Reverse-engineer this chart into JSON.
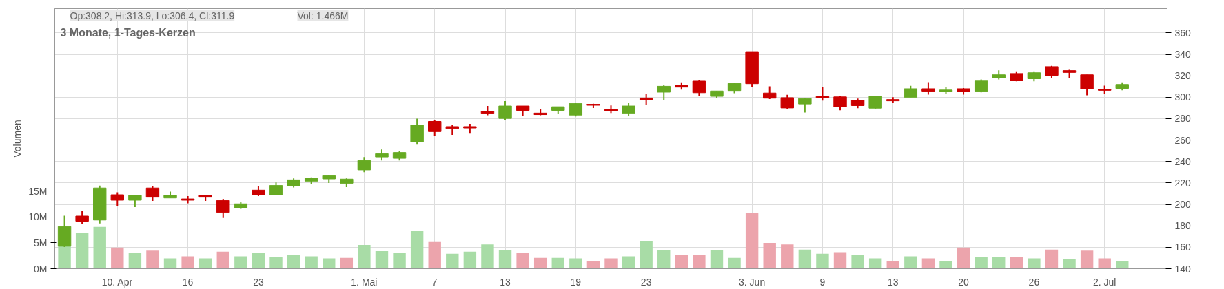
{
  "chart_data": {
    "type": "candlestick",
    "title": "3 Monate, 1-Tages-Kerzen",
    "categories": [
      null,
      null,
      null,
      "10. Apr",
      null,
      null,
      null,
      "16",
      null,
      null,
      null,
      "23",
      null,
      null,
      null,
      null,
      null,
      "1. Mai",
      null,
      null,
      null,
      "7",
      null,
      null,
      null,
      "13",
      null,
      null,
      null,
      "19",
      null,
      null,
      null,
      "23",
      null,
      null,
      null,
      null,
      null,
      "3. Jun",
      null,
      null,
      null,
      "9",
      null,
      null,
      null,
      "13",
      null,
      null,
      null,
      "20",
      null,
      null,
      null,
      "26",
      null,
      null,
      null,
      "2. Jul",
      null
    ],
    "ohlc": [
      [
        161.0,
        189.5,
        160.3,
        179.3
      ],
      [
        189.1,
        193.7,
        181.6,
        184.3
      ],
      [
        185.4,
        217.6,
        182.2,
        215.3
      ],
      [
        209.0,
        211.2,
        198.7,
        203.9
      ],
      [
        203.9,
        209.0,
        197.5,
        208.3
      ],
      [
        215.3,
        216.9,
        203.2,
        206.7
      ],
      [
        206.0,
        211.9,
        206.0,
        208.3
      ],
      [
        205.1,
        207.8,
        201.0,
        203.9
      ],
      [
        208.5,
        209.0,
        203.2,
        206.7
      ],
      [
        203.7,
        205.1,
        187.3,
        192.5
      ],
      [
        196.8,
        202.1,
        195.7,
        200.5
      ],
      [
        213.3,
        216.9,
        207.8,
        209.0
      ],
      [
        209.0,
        220.4,
        209.0,
        217.6
      ],
      [
        217.4,
        224.2,
        215.8,
        222.9
      ],
      [
        221.7,
        225.2,
        219.2,
        224.5
      ],
      [
        223.8,
        227.2,
        219.9,
        226.8
      ],
      [
        219.7,
        224.2,
        216.1,
        223.6
      ],
      [
        232.2,
        244.1,
        230.0,
        240.9
      ],
      [
        244.3,
        251.2,
        240.9,
        247.3
      ],
      [
        243.0,
        250.0,
        240.9,
        248.4
      ],
      [
        258.5,
        280.0,
        255.8,
        274.0
      ],
      [
        277.4,
        278.6,
        264.2,
        267.9
      ],
      [
        272.6,
        274.0,
        264.9,
        270.8
      ],
      [
        272.6,
        275.2,
        266.0,
        271.3
      ],
      [
        286.8,
        291.8,
        283.2,
        285.0
      ],
      [
        280.2,
        296.4,
        278.6,
        291.8
      ],
      [
        291.8,
        291.8,
        282.9,
        287.7
      ],
      [
        285.2,
        288.6,
        283.2,
        283.8
      ],
      [
        287.7,
        291.1,
        284.1,
        291.1
      ],
      [
        283.4,
        294.3,
        282.0,
        294.3
      ],
      [
        293.4,
        293.9,
        290.0,
        292.5
      ],
      [
        288.9,
        292.3,
        285.2,
        287.4
      ],
      [
        285.2,
        295.0,
        282.7,
        291.8
      ],
      [
        299.3,
        303.2,
        292.7,
        297.5
      ],
      [
        304.7,
        311.6,
        297.1,
        310.2
      ],
      [
        311.2,
        313.9,
        307.1,
        309.4
      ],
      [
        315.6,
        316.3,
        301.0,
        304.2
      ],
      [
        300.8,
        305.8,
        299.1,
        305.8
      ],
      [
        306.2,
        313.7,
        303.7,
        312.8
      ],
      [
        342.5,
        342.5,
        309.4,
        312.6
      ],
      [
        303.9,
        310.2,
        298.2,
        299.1
      ],
      [
        299.6,
        302.3,
        288.6,
        290.0
      ],
      [
        293.7,
        298.8,
        285.8,
        298.8
      ],
      [
        300.8,
        309.4,
        296.9,
        299.3
      ],
      [
        300.3,
        301.0,
        287.8,
        291.0
      ],
      [
        297.1,
        298.8,
        289.8,
        292.2
      ],
      [
        289.8,
        301.5,
        289.5,
        301.0
      ],
      [
        297.8,
        300.0,
        294.4,
        296.6
      ],
      [
        300.0,
        310.6,
        300.0,
        307.9
      ],
      [
        307.9,
        314.0,
        302.5,
        305.7
      ],
      [
        305.2,
        309.9,
        303.2,
        306.7
      ],
      [
        307.9,
        308.6,
        302.5,
        305.2
      ],
      [
        305.7,
        316.5,
        304.5,
        315.7
      ],
      [
        317.9,
        325.0,
        316.5,
        320.9
      ],
      [
        322.1,
        324.1,
        314.8,
        315.5
      ],
      [
        317.2,
        324.1,
        314.8,
        322.8
      ],
      [
        328.5,
        329.2,
        317.9,
        320.4
      ],
      [
        324.8,
        325.5,
        317.7,
        323.1
      ],
      [
        320.9,
        320.9,
        301.8,
        307.6
      ],
      [
        307.4,
        310.8,
        303.0,
        306.4
      ],
      [
        308.2,
        313.9,
        306.4,
        311.9
      ]
    ],
    "colors": [
      "#66aa22",
      "#cc0000",
      "#66aa22",
      "#cc0000",
      "#66aa22",
      "#cc0000",
      "#66aa22",
      "#cc0000",
      "#cc0000",
      "#cc0000",
      "#66aa22",
      "#cc0000",
      "#66aa22",
      "#66aa22",
      "#66aa22",
      "#66aa22",
      "#66aa22",
      "#66aa22",
      "#66aa22",
      "#66aa22",
      "#66aa22",
      "#cc0000",
      "#cc0000",
      "#cc0000",
      "#cc0000",
      "#66aa22",
      "#cc0000",
      "#cc0000",
      "#66aa22",
      "#66aa22",
      "#cc0000",
      "#cc0000",
      "#66aa22",
      "#cc0000",
      "#66aa22",
      "#cc0000",
      "#cc0000",
      "#66aa22",
      "#66aa22",
      "#cc0000",
      "#cc0000",
      "#cc0000",
      "#66aa22",
      "#cc0000",
      "#cc0000",
      "#cc0000",
      "#66aa22",
      "#cc0000",
      "#66aa22",
      "#cc0000",
      "#66aa22",
      "#cc0000",
      "#66aa22",
      "#66aa22",
      "#cc0000",
      "#66aa22",
      "#cc0000",
      "#cc0000",
      "#cc0000",
      "#cc0000",
      "#66aa22"
    ],
    "series": [
      {
        "type": "bar",
        "axis": "y2",
        "values": [
          4.5,
          6.9,
          8.1,
          4.1,
          3.0,
          3.5,
          2.0,
          2.4,
          2.0,
          3.3,
          2.4,
          3.0,
          2.3,
          2.7,
          2.4,
          2.0,
          2.1,
          4.6,
          3.4,
          3.1,
          7.3,
          5.3,
          2.9,
          3.3,
          4.7,
          3.6,
          3.1,
          2.1,
          2.1,
          2.0,
          1.5,
          2.0,
          2.4,
          5.4,
          3.6,
          2.6,
          2.7,
          3.6,
          2.1,
          10.8,
          5.0,
          4.7,
          3.7,
          2.9,
          3.2,
          2.7,
          2.0,
          1.4,
          2.4,
          2.0,
          1.4,
          4.1,
          2.2,
          2.3,
          2.2,
          2.0,
          3.7,
          1.9,
          3.5,
          2.0,
          1.466
        ],
        "colors": [
          "#a8dca6",
          "#a8dca6",
          "#a8dca6",
          "#eca4ac",
          "#a8dca6",
          "#eca4ac",
          "#a8dca6",
          "#eca4ac",
          "#a8dca6",
          "#eca4ac",
          "#a8dca6",
          "#a8dca6",
          "#a8dca6",
          "#a8dca6",
          "#a8dca6",
          "#a8dca6",
          "#eca4ac",
          "#a8dca6",
          "#a8dca6",
          "#a8dca6",
          "#a8dca6",
          "#eca4ac",
          "#a8dca6",
          "#a8dca6",
          "#a8dca6",
          "#a8dca6",
          "#eca4ac",
          "#eca4ac",
          "#a8dca6",
          "#a8dca6",
          "#eca4ac",
          "#eca4ac",
          "#a8dca6",
          "#a8dca6",
          "#a8dca6",
          "#eca4ac",
          "#eca4ac",
          "#a8dca6",
          "#a8dca6",
          "#eca4ac",
          "#eca4ac",
          "#eca4ac",
          "#a8dca6",
          "#a8dca6",
          "#eca4ac",
          "#a8dca6",
          "#a8dca6",
          "#eca4ac",
          "#a8dca6",
          "#eca4ac",
          "#a8dca6",
          "#eca4ac",
          "#a8dca6",
          "#a8dca6",
          "#eca4ac",
          "#a8dca6",
          "#eca4ac",
          "#a8dca6",
          "#eca4ac",
          "#eca4ac",
          "#a8dca6"
        ]
      }
    ],
    "ylim": [
      140,
      382.7
    ],
    "yticks": [
      140,
      160,
      180,
      200,
      220,
      240,
      260,
      280,
      300,
      320,
      340,
      360
    ],
    "y2lim": [
      0,
      50.3
    ],
    "y2ticks": [
      {
        "value": 0,
        "label": "0M"
      },
      {
        "value": 5,
        "label": "5M"
      },
      {
        "value": 10,
        "label": "10M"
      },
      {
        "value": 15,
        "label": "15M"
      }
    ],
    "y2label": "Volumen",
    "grid": true,
    "annotations": [
      "Op:308.2, Hi:313.9, Lo:306.4, Cl:311.9",
      "Vol: 1.466M"
    ]
  }
}
